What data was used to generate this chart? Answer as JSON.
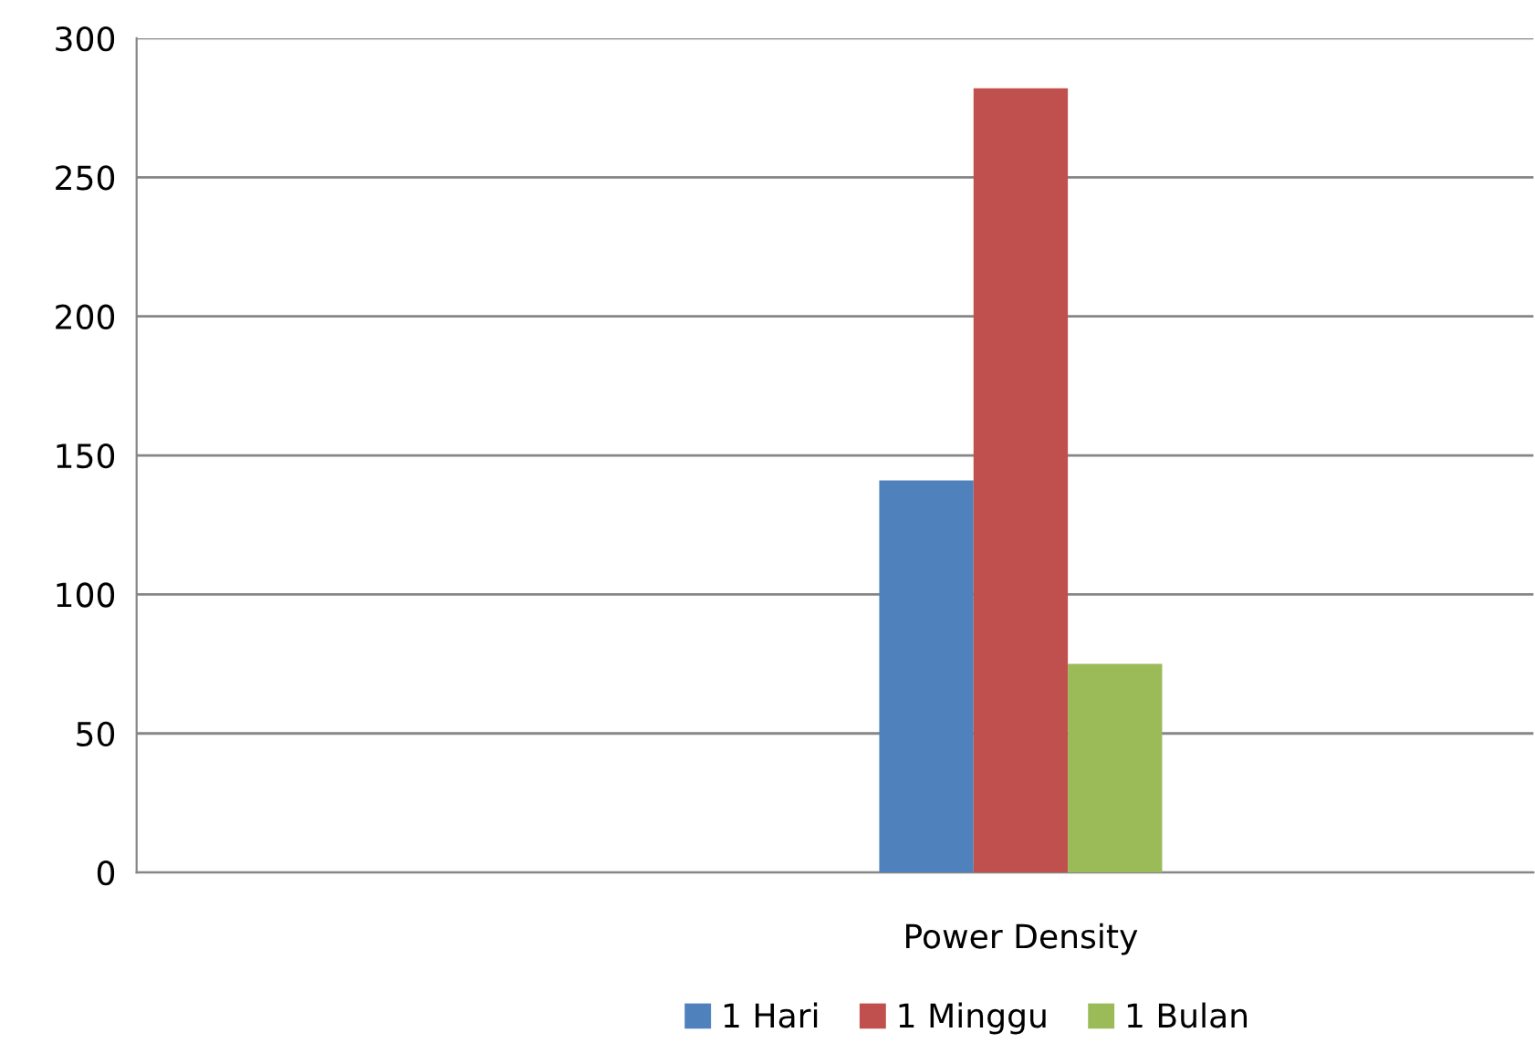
{
  "chart_data": {
    "type": "bar",
    "categories": [
      null,
      "Power Density"
    ],
    "series": [
      {
        "name": "1 Hari",
        "color": "#4f81bd",
        "values": [
          null,
          141
        ]
      },
      {
        "name": "1 Minggu",
        "color": "#c0504d",
        "values": [
          null,
          282
        ]
      },
      {
        "name": "1 Bulan",
        "color": "#9bbb59",
        "values": [
          null,
          75
        ]
      }
    ],
    "ylim": [
      0,
      300
    ],
    "yticks": [
      0,
      50,
      100,
      150,
      200,
      250,
      300
    ],
    "grid": "y",
    "legend": "bottom"
  }
}
